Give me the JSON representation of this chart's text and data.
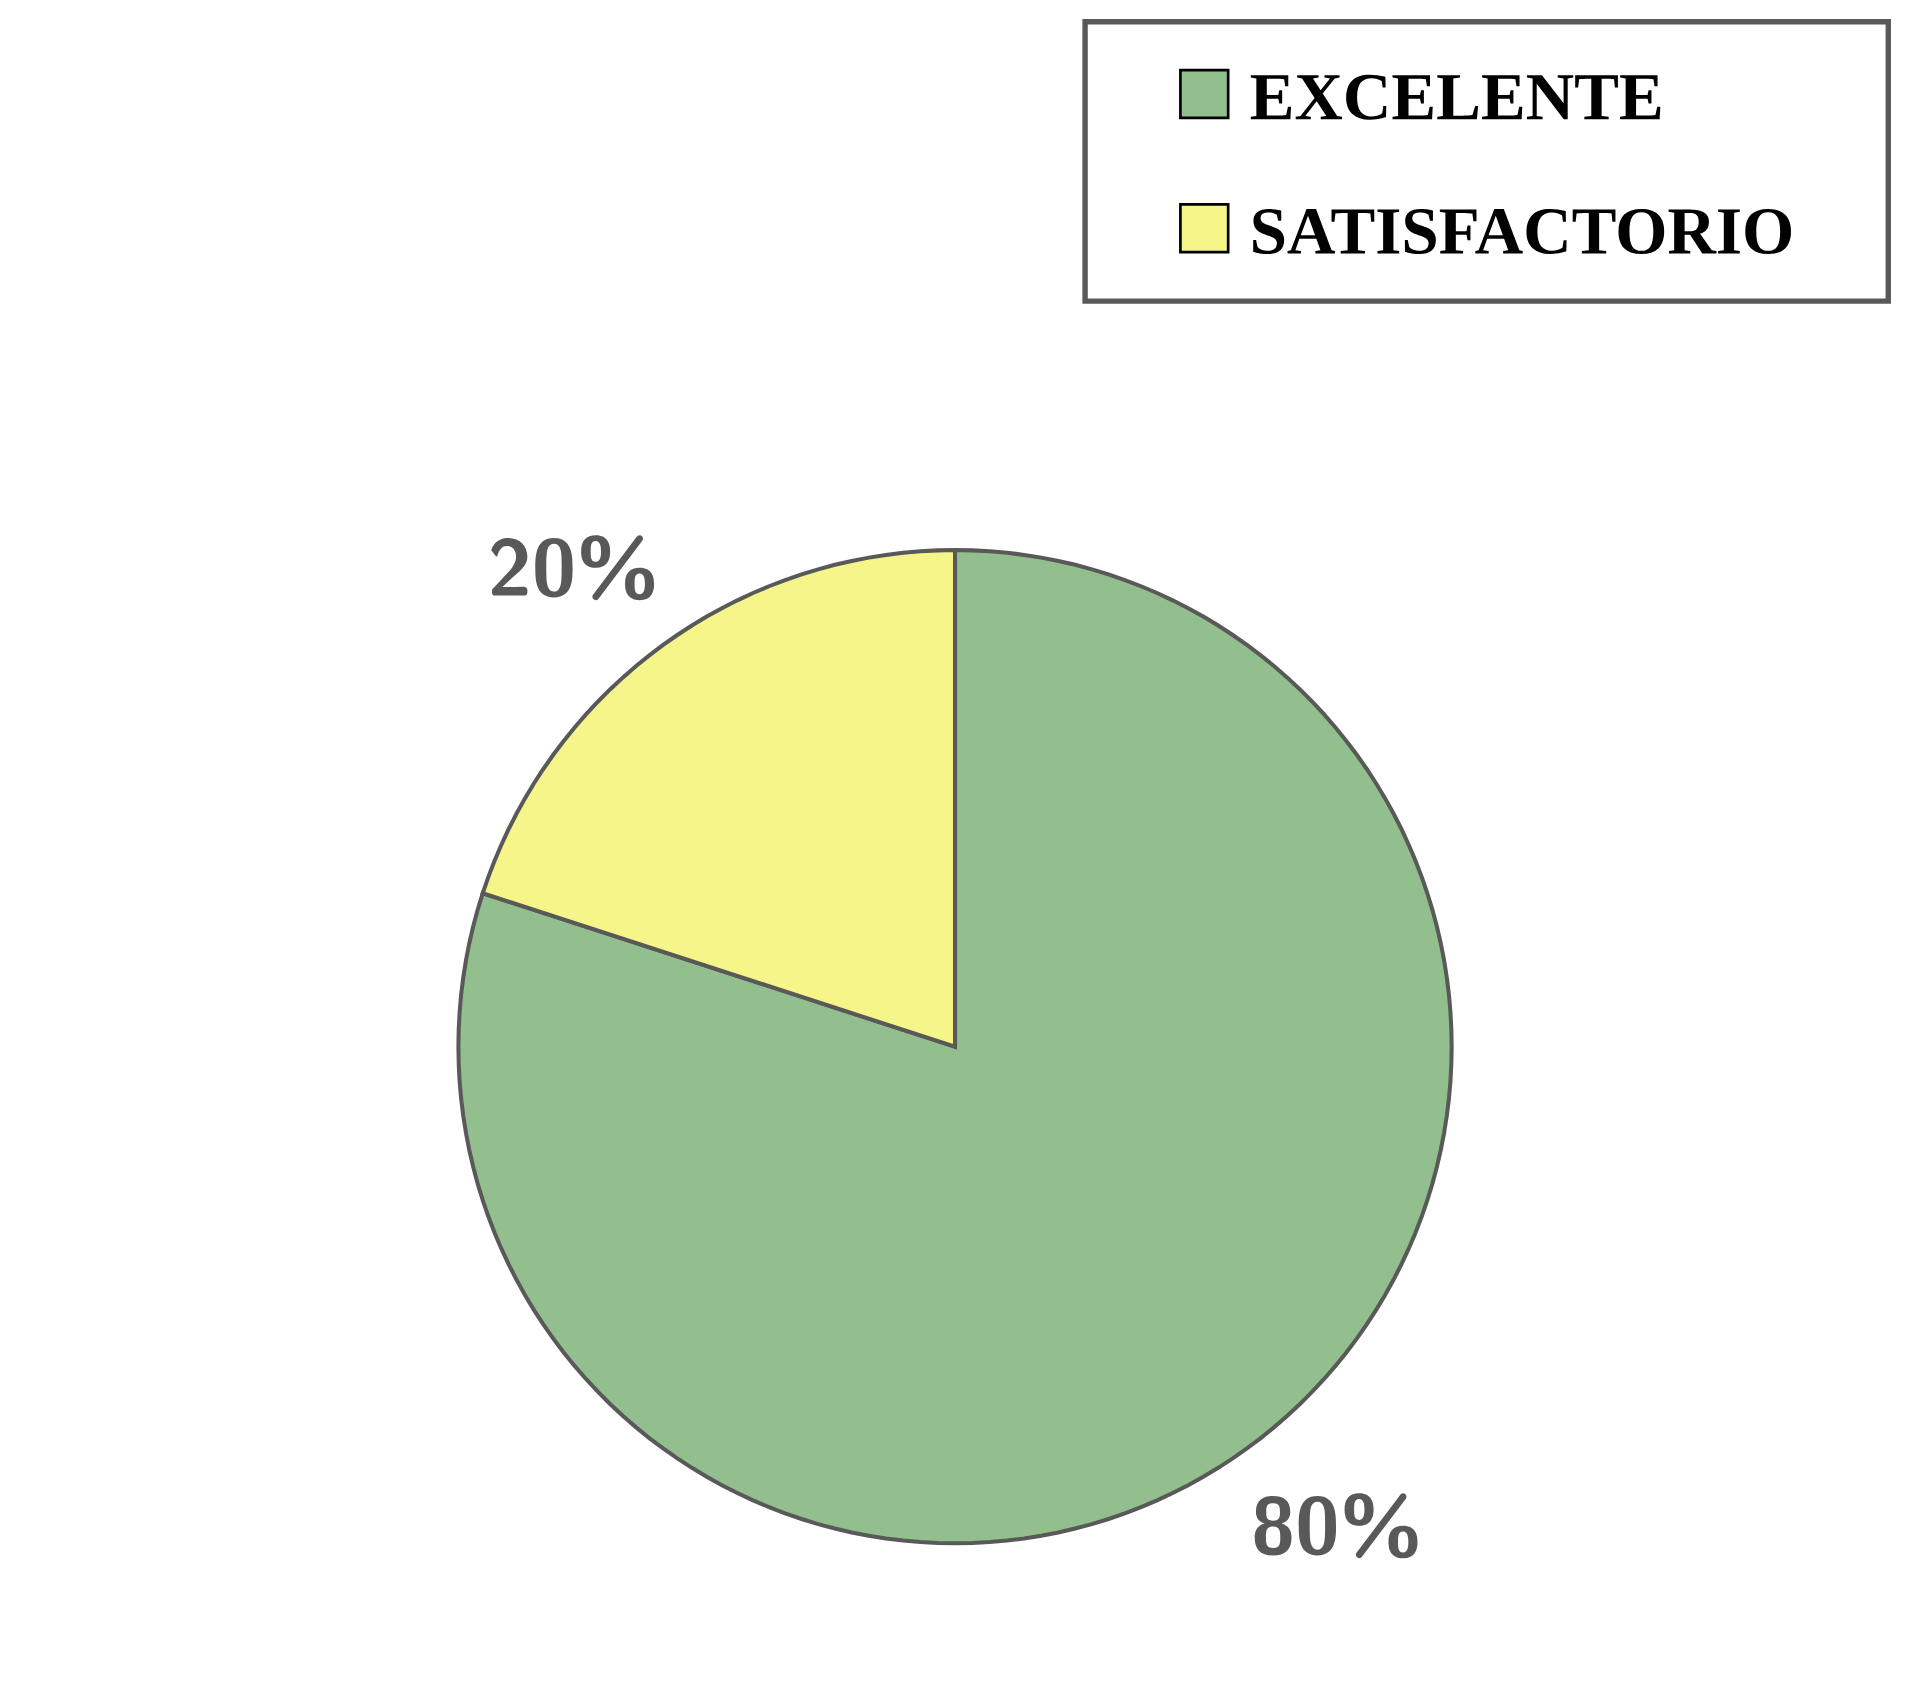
{
  "chart_data": {
    "type": "pie",
    "categories": [
      "EXCELENTE",
      "SATISFACTORIO"
    ],
    "values": [
      80,
      20
    ],
    "colors": [
      "#93bf8f",
      "#f5f58a"
    ],
    "value_labels": [
      "80%",
      "20%"
    ],
    "legend": "top right"
  }
}
